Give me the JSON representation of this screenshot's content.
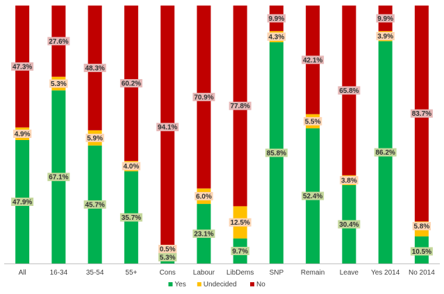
{
  "chart_data": {
    "type": "bar",
    "stacked": true,
    "normalized": true,
    "categories": [
      "All",
      "16-34",
      "35-54",
      "55+",
      "Cons",
      "Labour",
      "LibDems",
      "SNP",
      "Remain",
      "Leave",
      "Yes 2014",
      "No 2014"
    ],
    "series": [
      {
        "name": "Yes",
        "color": "#00b050",
        "label_bg": "#c4d79b",
        "values": [
          47.9,
          67.1,
          45.7,
          35.7,
          5.3,
          23.1,
          9.7,
          85.8,
          52.4,
          30.4,
          86.2,
          10.5
        ]
      },
      {
        "name": "Undecided",
        "color": "#ffc000",
        "label_bg": "#fcd5b4",
        "values": [
          4.9,
          5.3,
          5.9,
          4.0,
          0.5,
          6.0,
          12.5,
          4.3,
          5.5,
          3.8,
          3.9,
          5.8
        ]
      },
      {
        "name": "No",
        "color": "#c00000",
        "label_bg": "#e6b8b7",
        "values": [
          47.3,
          27.6,
          48.3,
          60.2,
          94.1,
          70.9,
          77.8,
          9.9,
          42.1,
          65.8,
          9.9,
          83.7
        ]
      }
    ],
    "data_labels": [
      [
        "47.9%",
        "67.1%",
        "45.7%",
        "35.7%",
        "5.3%",
        "23.1%",
        "9.7%",
        "85.8%",
        "52.4%",
        "30.4%",
        "86.2%",
        "10.5%"
      ],
      [
        "4.9%",
        "5.3%",
        "5.9%",
        "4.0%",
        "0.5%",
        "6.0%",
        "12.5%",
        "4.3%",
        "5.5%",
        "3.8%",
        "3.9%",
        "5.8%"
      ],
      [
        "47.3%",
        "27.6%",
        "48.3%",
        "60.2%",
        "94.1%",
        "70.9%",
        "77.8%",
        "9.9%",
        "42.1%",
        "65.8%",
        "9.9%",
        "83.7%"
      ]
    ],
    "ylim": [
      0,
      100
    ],
    "grid": false,
    "legend_position": "bottom"
  }
}
